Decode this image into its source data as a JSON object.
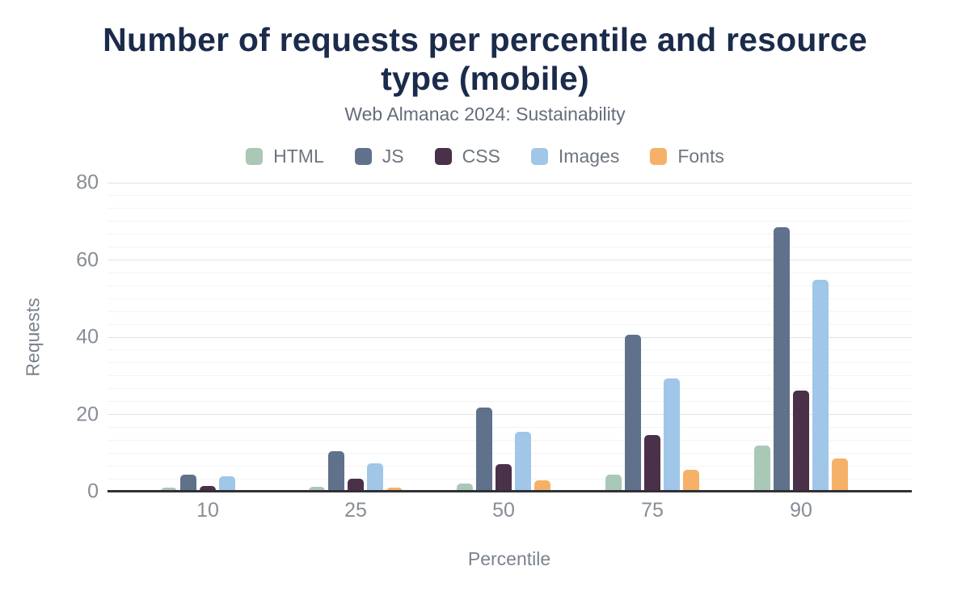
{
  "title_lines": [
    "Number of requests per percentile and resource",
    "type (mobile)"
  ],
  "subtitle": "Web Almanac 2024: Sustainability",
  "chart_data": {
    "type": "bar",
    "title": "Number of requests per percentile and resource type (mobile)",
    "subtitle": "Web Almanac 2024: Sustainability",
    "xlabel": "Percentile",
    "ylabel": "Requests",
    "categories": [
      "10",
      "25",
      "50",
      "75",
      "90"
    ],
    "series": [
      {
        "name": "HTML",
        "color": "#a9c8b6",
        "values": [
          1,
          1.3,
          2.1,
          4.5,
          11.9
        ]
      },
      {
        "name": "JS",
        "color": "#5f718b",
        "values": [
          4.4,
          10.5,
          21.7,
          40.7,
          68.4
        ]
      },
      {
        "name": "CSS",
        "color": "#4a3049",
        "values": [
          1.4,
          3.4,
          7.1,
          14.7,
          26.1
        ]
      },
      {
        "name": "Images",
        "color": "#a0c6e8",
        "values": [
          3.9,
          7.3,
          15.5,
          29.4,
          54.9
        ]
      },
      {
        "name": "Fonts",
        "color": "#f5b168",
        "values": [
          0,
          1.1,
          2.9,
          5.6,
          8.5
        ]
      }
    ],
    "ylim": [
      0,
      80
    ],
    "yticks": [
      0,
      20,
      40,
      60,
      80
    ],
    "grid": "horizontal major gridlines every 20 with 5 light minor gridlines between",
    "legend_position": "top-center"
  },
  "colors": {
    "title": "#1b2b4b",
    "subtitle": "#646d7a",
    "axis_line": "#303036",
    "tick_labels": "#868d96",
    "html": "#a9c8b6",
    "js": "#5f718b",
    "css": "#4a3049",
    "images": "#a0c6e8",
    "fonts": "#f5b168"
  }
}
